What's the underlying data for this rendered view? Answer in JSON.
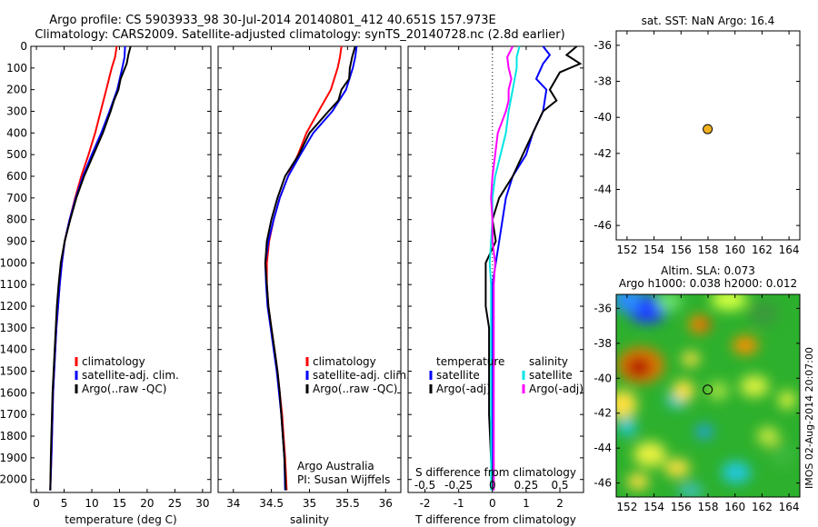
{
  "header": {
    "line1": "Argo profile: CS 5903933_98 30-Jul-2014 20140801_412 40.651S 157.973E",
    "line2": "Climatology: CARS2009. Satellite-adjusted climatology: synTS_20140728.nc (2.8d earlier)"
  },
  "colors": {
    "climatology": "#ff0000",
    "satellite": "#0000ff",
    "argo": "#000000",
    "sal_satellite": "#00e5e5",
    "sal_argo": "#ff00ff",
    "marker": "#f0b020"
  },
  "depth_axis": {
    "ticks": [
      0,
      100,
      200,
      300,
      400,
      500,
      600,
      700,
      800,
      900,
      1000,
      1100,
      1200,
      1300,
      1400,
      1500,
      1600,
      1700,
      1800,
      1900,
      2000
    ]
  },
  "chart_data": [
    {
      "type": "line",
      "name": "temperature-profile",
      "xlabel": "temperature (deg C)",
      "xlim": [
        -1,
        31.5
      ],
      "ylim": [
        2060,
        0
      ],
      "xticks": [
        0,
        5,
        10,
        15,
        20,
        25,
        30
      ],
      "yticks": [
        0,
        100,
        200,
        300,
        400,
        500,
        600,
        700,
        800,
        900,
        1000,
        1100,
        1200,
        1300,
        1400,
        1500,
        1600,
        1700,
        1800,
        1900,
        2000
      ],
      "legend": [
        "climatology",
        "satellite-adj. clim.",
        "Argo(..raw -QC)"
      ],
      "series": [
        {
          "name": "climatology",
          "color": "#ff0000",
          "points": [
            [
              14.5,
              0
            ],
            [
              14.2,
              50
            ],
            [
              13.6,
              100
            ],
            [
              12.6,
              200
            ],
            [
              11.6,
              300
            ],
            [
              10.6,
              400
            ],
            [
              9.4,
              500
            ],
            [
              8.1,
              600
            ],
            [
              7.0,
              700
            ],
            [
              6.0,
              800
            ],
            [
              5.1,
              900
            ],
            [
              4.6,
              1000
            ],
            [
              4.2,
              1100
            ],
            [
              3.9,
              1200
            ],
            [
              3.6,
              1300
            ],
            [
              3.4,
              1400
            ],
            [
              3.2,
              1500
            ],
            [
              3.0,
              1600
            ],
            [
              2.9,
              1700
            ],
            [
              2.8,
              1800
            ],
            [
              2.7,
              1900
            ],
            [
              2.5,
              2050
            ]
          ]
        },
        {
          "name": "satellite-adj. clim.",
          "color": "#0000ff",
          "points": [
            [
              16.0,
              0
            ],
            [
              15.9,
              50
            ],
            [
              15.5,
              100
            ],
            [
              14.6,
              200
            ],
            [
              13.2,
              300
            ],
            [
              11.7,
              400
            ],
            [
              10.0,
              500
            ],
            [
              8.4,
              600
            ],
            [
              7.1,
              700
            ],
            [
              6.0,
              800
            ],
            [
              5.1,
              900
            ],
            [
              4.6,
              1000
            ],
            [
              4.2,
              1100
            ],
            [
              3.9,
              1200
            ],
            [
              3.6,
              1300
            ],
            [
              3.4,
              1400
            ],
            [
              3.2,
              1500
            ],
            [
              3.0,
              1600
            ],
            [
              2.9,
              1700
            ],
            [
              2.8,
              1800
            ],
            [
              2.7,
              1900
            ],
            [
              2.5,
              2050
            ]
          ]
        },
        {
          "name": "Argo(..raw -QC)",
          "color": "#000000",
          "points": [
            [
              17.0,
              0
            ],
            [
              16.6,
              40
            ],
            [
              16.3,
              80
            ],
            [
              15.2,
              150
            ],
            [
              14.8,
              200
            ],
            [
              14.0,
              250
            ],
            [
              13.4,
              300
            ],
            [
              12.0,
              400
            ],
            [
              10.3,
              500
            ],
            [
              8.6,
              600
            ],
            [
              7.2,
              700
            ],
            [
              6.1,
              800
            ],
            [
              5.1,
              900
            ],
            [
              4.4,
              1000
            ],
            [
              4.0,
              1100
            ],
            [
              3.7,
              1200
            ],
            [
              3.5,
              1300
            ],
            [
              3.3,
              1400
            ],
            [
              3.1,
              1500
            ],
            [
              2.9,
              1600
            ],
            [
              2.8,
              1700
            ],
            [
              2.7,
              1800
            ],
            [
              2.6,
              1900
            ],
            [
              2.5,
              2050
            ]
          ]
        }
      ]
    },
    {
      "type": "line",
      "name": "salinity-profile",
      "xlabel": "salinity",
      "xlim": [
        33.8,
        36.2
      ],
      "ylim": [
        2060,
        0
      ],
      "xticks": [
        34,
        34.5,
        35,
        35.5,
        36
      ],
      "legend": [
        "climatology",
        "satellite-adj. clim.",
        "Argo(..raw -QC)"
      ],
      "annotation": [
        "Argo Australia",
        "PI: Susan Wijffels"
      ],
      "series": [
        {
          "name": "climatology",
          "color": "#ff0000",
          "points": [
            [
              35.42,
              0
            ],
            [
              35.4,
              50
            ],
            [
              35.37,
              100
            ],
            [
              35.28,
              200
            ],
            [
              35.12,
              300
            ],
            [
              34.96,
              400
            ],
            [
              34.85,
              500
            ],
            [
              34.72,
              600
            ],
            [
              34.61,
              700
            ],
            [
              34.53,
              800
            ],
            [
              34.47,
              900
            ],
            [
              34.44,
              1000
            ],
            [
              34.44,
              1100
            ],
            [
              34.46,
              1200
            ],
            [
              34.5,
              1300
            ],
            [
              34.54,
              1400
            ],
            [
              34.58,
              1500
            ],
            [
              34.61,
              1600
            ],
            [
              34.64,
              1700
            ],
            [
              34.66,
              1800
            ],
            [
              34.68,
              1900
            ],
            [
              34.7,
              2050
            ]
          ]
        },
        {
          "name": "satellite-adj. clim.",
          "color": "#0000ff",
          "points": [
            [
              35.62,
              0
            ],
            [
              35.6,
              50
            ],
            [
              35.57,
              100
            ],
            [
              35.48,
              200
            ],
            [
              35.3,
              300
            ],
            [
              35.05,
              400
            ],
            [
              34.88,
              500
            ],
            [
              34.72,
              600
            ],
            [
              34.61,
              700
            ],
            [
              34.53,
              800
            ],
            [
              34.46,
              900
            ],
            [
              34.42,
              1000
            ],
            [
              34.43,
              1100
            ],
            [
              34.45,
              1200
            ],
            [
              34.49,
              1300
            ],
            [
              34.53,
              1400
            ],
            [
              34.57,
              1500
            ],
            [
              34.6,
              1600
            ],
            [
              34.63,
              1700
            ],
            [
              34.65,
              1800
            ],
            [
              34.67,
              1900
            ],
            [
              34.68,
              2050
            ]
          ]
        },
        {
          "name": "Argo(..raw -QC)",
          "color": "#000000",
          "points": [
            [
              35.6,
              0
            ],
            [
              35.56,
              50
            ],
            [
              35.53,
              100
            ],
            [
              35.52,
              150
            ],
            [
              35.42,
              200
            ],
            [
              35.38,
              250
            ],
            [
              35.25,
              300
            ],
            [
              35.0,
              400
            ],
            [
              34.86,
              500
            ],
            [
              34.68,
              600
            ],
            [
              34.58,
              700
            ],
            [
              34.5,
              800
            ],
            [
              34.44,
              900
            ],
            [
              34.42,
              1000
            ],
            [
              34.44,
              1100
            ],
            [
              34.46,
              1200
            ],
            [
              34.5,
              1300
            ],
            [
              34.54,
              1400
            ],
            [
              34.58,
              1500
            ],
            [
              34.61,
              1600
            ],
            [
              34.63,
              1700
            ],
            [
              34.65,
              1800
            ],
            [
              34.67,
              1900
            ],
            [
              34.69,
              2050
            ]
          ]
        }
      ]
    },
    {
      "type": "line",
      "name": "difference-profile",
      "xlabel": "T difference from climatology",
      "xlabel_top": "S difference from climatology",
      "xlim": [
        -2.5,
        2.7
      ],
      "ylim": [
        2060,
        0
      ],
      "xticks": [
        -2,
        -1,
        0,
        1,
        2
      ],
      "xticks_s": [
        "-0.5",
        "-0.25",
        "0",
        "0.25",
        "0.5"
      ],
      "xticks_s_values": [
        -0.5,
        -0.25,
        0,
        0.25,
        0.5
      ],
      "legend_left_title": "temperature",
      "legend_right_title": "salinity",
      "legend_left": [
        "satellite",
        "Argo(-adj)"
      ],
      "legend_right": [
        "satellite",
        "Argo(-adj)"
      ],
      "series": [
        {
          "name": "temperature satellite",
          "color": "#0000ff",
          "points": [
            [
              1.5,
              0
            ],
            [
              1.7,
              40
            ],
            [
              1.5,
              80
            ],
            [
              1.3,
              150
            ],
            [
              1.6,
              200
            ],
            [
              1.5,
              300
            ],
            [
              1.2,
              400
            ],
            [
              1.0,
              500
            ],
            [
              0.6,
              600
            ],
            [
              0.4,
              700
            ],
            [
              0.3,
              800
            ],
            [
              0.2,
              900
            ],
            [
              0.1,
              1000
            ],
            [
              0.0,
              1100
            ],
            [
              0.0,
              1200
            ],
            [
              0.0,
              1300
            ],
            [
              0.0,
              1400
            ],
            [
              0.0,
              1500
            ],
            [
              0.0,
              1700
            ],
            [
              0.0,
              2050
            ]
          ]
        },
        {
          "name": "temperature Argo(-adj)",
          "color": "#000000",
          "points": [
            [
              2.5,
              0
            ],
            [
              2.2,
              40
            ],
            [
              2.6,
              80
            ],
            [
              2.0,
              120
            ],
            [
              1.7,
              200
            ],
            [
              1.9,
              250
            ],
            [
              1.5,
              300
            ],
            [
              1.2,
              400
            ],
            [
              0.9,
              500
            ],
            [
              0.6,
              600
            ],
            [
              0.2,
              700
            ],
            [
              0.0,
              800
            ],
            [
              0.1,
              900
            ],
            [
              -0.2,
              1000
            ],
            [
              -0.2,
              1100
            ],
            [
              -0.2,
              1200
            ],
            [
              -0.1,
              1300
            ],
            [
              -0.1,
              1400
            ],
            [
              -0.1,
              1500
            ],
            [
              -0.1,
              1700
            ],
            [
              0.0,
              2050
            ]
          ]
        },
        {
          "name": "salinity satellite",
          "color": "#00e5e5",
          "points": [
            [
              0.2,
              0
            ],
            [
              0.18,
              50
            ],
            [
              0.18,
              100
            ],
            [
              0.15,
              200
            ],
            [
              0.12,
              300
            ],
            [
              0.1,
              400
            ],
            [
              0.06,
              500
            ],
            [
              0.02,
              600
            ],
            [
              0.0,
              700
            ],
            [
              0.0,
              800
            ],
            [
              -0.01,
              900
            ],
            [
              -0.02,
              1000
            ],
            [
              -0.01,
              1100
            ],
            [
              -0.01,
              1200
            ],
            [
              -0.01,
              1300
            ],
            [
              -0.01,
              1400
            ],
            [
              -0.01,
              1600
            ],
            [
              -0.01,
              2050
            ]
          ]
        },
        {
          "name": "salinity Argo(-adj)",
          "color": "#ff00ff",
          "points": [
            [
              0.15,
              0
            ],
            [
              0.11,
              50
            ],
            [
              0.12,
              100
            ],
            [
              0.14,
              150
            ],
            [
              0.12,
              200
            ],
            [
              0.12,
              250
            ],
            [
              0.1,
              300
            ],
            [
              0.04,
              400
            ],
            [
              0.02,
              500
            ],
            [
              0.0,
              600
            ],
            [
              -0.01,
              700
            ],
            [
              0.0,
              800
            ],
            [
              0.0,
              900
            ],
            [
              0.02,
              1000
            ],
            [
              0.01,
              1100
            ],
            [
              0.01,
              1200
            ],
            [
              0.01,
              1300
            ],
            [
              0.01,
              1500
            ],
            [
              0.01,
              2050
            ]
          ]
        }
      ]
    },
    {
      "type": "scatter",
      "name": "sst-map",
      "title": "sat. SST: NaN Argo: 16.4",
      "xlim": [
        151.2,
        164.8
      ],
      "ylim": [
        -46.8,
        -35.2
      ],
      "xticks": [
        152,
        154,
        156,
        158,
        160,
        162,
        164
      ],
      "yticks": [
        -36,
        -38,
        -40,
        -42,
        -44,
        -46
      ],
      "points": [
        [
          157.973,
          -40.651
        ]
      ]
    },
    {
      "type": "heatmap",
      "name": "sla-map",
      "title": "Altim. SLA: 0.073",
      "subtitle": "Argo h1000: 0.038 h2000: 0.012",
      "side_label": "IMOS 02-Aug-2014 20:07:00",
      "xlim": [
        151.2,
        164.8
      ],
      "ylim": [
        -46.8,
        -35.2
      ],
      "xticks": [
        152,
        154,
        156,
        158,
        160,
        162,
        164
      ],
      "yticks": [
        -36,
        -38,
        -40,
        -42,
        -44,
        -46
      ],
      "points": [
        [
          157.973,
          -40.651
        ]
      ]
    }
  ]
}
